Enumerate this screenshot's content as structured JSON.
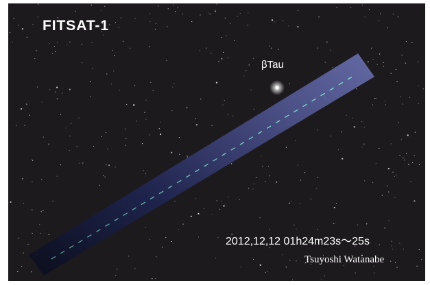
{
  "title": "FITSAT-1",
  "star_label": "βTau",
  "timestamp": "2012,12,12 01h24m23s～25s",
  "credit": "Tsuyoshi Watanabe"
}
